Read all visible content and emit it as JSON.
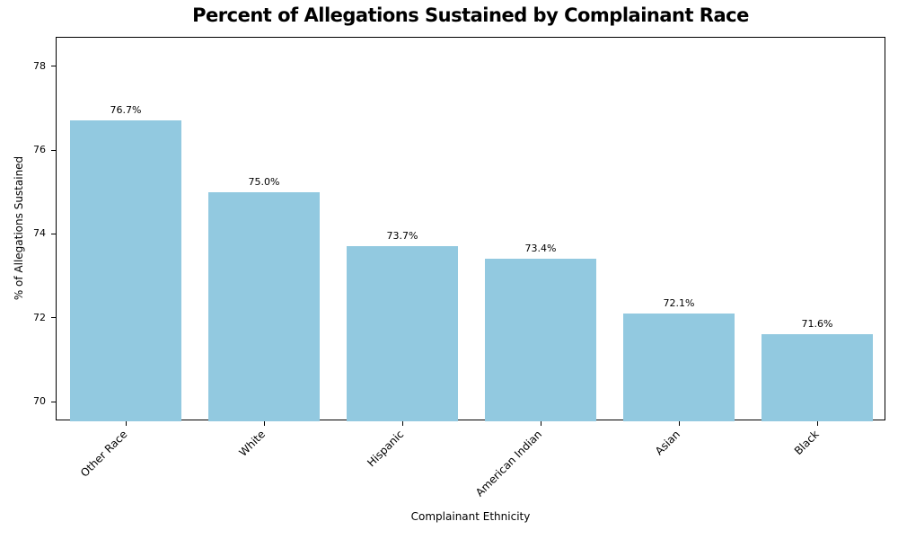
{
  "chart_data": {
    "type": "bar",
    "title": "Percent of Allegations Sustained by Complainant Race",
    "xlabel": "Complainant Ethnicity",
    "ylabel": "% of Allegations Sustained",
    "categories": [
      "Other Race",
      "White",
      "Hispanic",
      "American Indian",
      "Asian",
      "Black"
    ],
    "values": [
      76.7,
      75.0,
      73.7,
      73.4,
      72.1,
      71.6
    ],
    "bar_labels": [
      "76.7%",
      "75.0%",
      "73.7%",
      "73.4%",
      "72.1%",
      "71.6%"
    ],
    "yticks": [
      70,
      72,
      74,
      76,
      78
    ],
    "ytick_labels": [
      "70",
      "72",
      "74",
      "76",
      "78"
    ],
    "ylim": [
      69.53,
      78.68
    ],
    "bar_color": "#92C9E0",
    "text_color": "#000000",
    "grid": false,
    "legend": null,
    "x_tick_rotation_deg": 45
  }
}
